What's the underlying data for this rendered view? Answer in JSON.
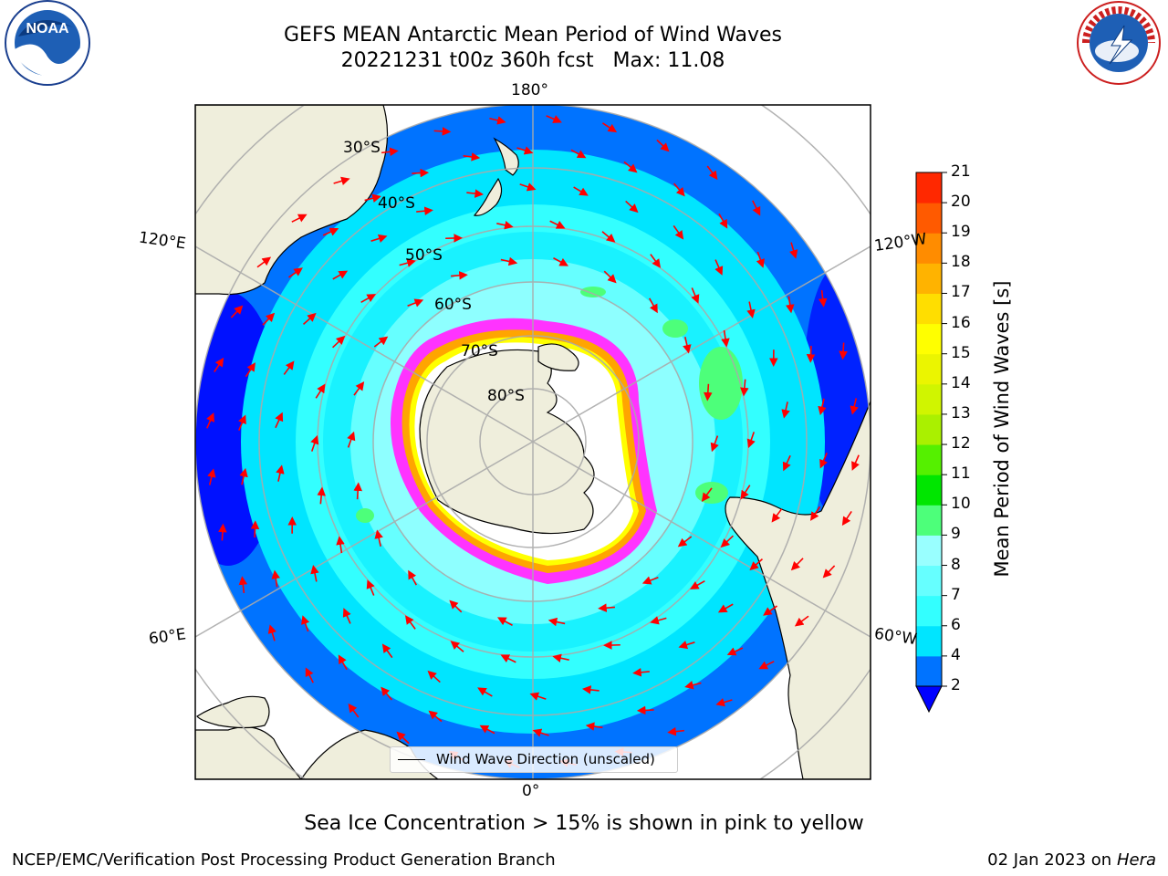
{
  "title": {
    "line1": "GEFS MEAN Antarctic Mean Period of Wind Waves",
    "line2": "20221231 t00z 360h fcst   Max: 11.08"
  },
  "logos": {
    "left": "NOAA",
    "right": "NATIONAL WEATHER SERVICE"
  },
  "map": {
    "projection": "south-polar-stereographic",
    "lon_labels": {
      "top": "180°",
      "bottom": "0°",
      "left_upper": "120°E",
      "left_lower": "60°E",
      "right_upper": "120°W",
      "right_lower": "60°W"
    },
    "lat_labels": [
      "30°S",
      "40°S",
      "50°S",
      "60°S",
      "70°S",
      "80°S"
    ],
    "legend": "Wind Wave Direction (unscaled)",
    "arrow_color": "#ff0000",
    "land_color": "#efeedc",
    "ice_colors": [
      "#ff00ff",
      "#ffa500",
      "#ffff00"
    ]
  },
  "colorbar": {
    "label": "Mean Period of Wind Waves [s]",
    "ticks": [
      "2",
      "4",
      "6",
      "7",
      "8",
      "9",
      "10",
      "11",
      "12",
      "13",
      "14",
      "15",
      "16",
      "17",
      "18",
      "19",
      "20",
      "21"
    ],
    "colors": [
      "#0073ff",
      "#00e5ff",
      "#33ffff",
      "#66ffff",
      "#99ffff",
      "#4dff7a",
      "#00e600",
      "#55f000",
      "#aaf000",
      "#d0f500",
      "#ebf500",
      "#ffff00",
      "#ffde00",
      "#ffb300",
      "#ff8c00",
      "#ff5a00",
      "#ff2800"
    ],
    "under_color": "#0000ff"
  },
  "subtitle": "Sea Ice Concentration > 15% is shown in pink to yellow",
  "footer": {
    "credit": "NCEP/EMC/Verification Post Processing Product Generation Branch",
    "date": "02 Jan 2023 on ",
    "machine": "Hera"
  }
}
